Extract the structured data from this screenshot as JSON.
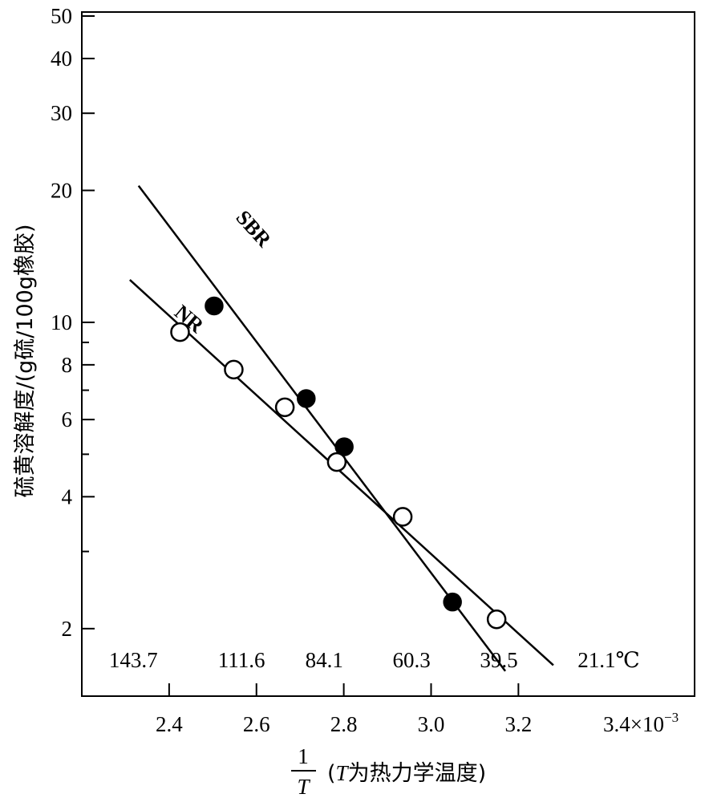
{
  "chart_data": {
    "type": "scatter",
    "title": "",
    "ylabel": "硫黄溶解度/(g硫/100g橡胶)",
    "xlabel_numerator": "1",
    "xlabel_denominator": "T",
    "xlabel_note_var": "T",
    "xlabel_note": "为热力学温度",
    "x_multiplier_label": "3.4×10",
    "x_multiplier_exp": "−3",
    "xlim": [
      2.2,
      3.4
    ],
    "ylim": [
      1.3,
      50
    ],
    "y_scale": "log",
    "x_ticks": [
      {
        "value": 2.4,
        "label": "2.4"
      },
      {
        "value": 2.6,
        "label": "2.6"
      },
      {
        "value": 2.8,
        "label": "2.8"
      },
      {
        "value": 3.0,
        "label": "3.0"
      },
      {
        "value": 3.2,
        "label": "3.2"
      }
    ],
    "y_ticks": [
      {
        "value": 2,
        "label": "2"
      },
      {
        "value": 4,
        "label": "4"
      },
      {
        "value": 6,
        "label": "6"
      },
      {
        "value": 8,
        "label": "8"
      },
      {
        "value": 10,
        "label": "10"
      },
      {
        "value": 20,
        "label": "20"
      },
      {
        "value": 30,
        "label": "30"
      },
      {
        "value": 40,
        "label": "40"
      },
      {
        "value": 50,
        "label": "50"
      }
    ],
    "y_minor_ticks": [
      3,
      5,
      7,
      9
    ],
    "temperature_labels": [
      {
        "x": 2.4,
        "label": "143.7"
      },
      {
        "x": 2.6,
        "label": "111.6"
      },
      {
        "x": 2.8,
        "label": "84.1"
      },
      {
        "x": 3.0,
        "label": "60.3"
      },
      {
        "x": 3.2,
        "label": "39.5"
      },
      {
        "x": 3.4,
        "label": "21.1℃"
      }
    ],
    "series": [
      {
        "name": "SBR",
        "marker": "filled-circle",
        "points": [
          {
            "x": 2.503,
            "y": 10.9
          },
          {
            "x": 2.714,
            "y": 6.7
          },
          {
            "x": 2.801,
            "y": 5.2
          },
          {
            "x": 3.049,
            "y": 2.3
          }
        ],
        "fit_line": [
          {
            "x": 2.33,
            "y": 20.5
          },
          {
            "x": 3.17,
            "y": 1.6
          }
        ]
      },
      {
        "name": "NR",
        "marker": "open-circle",
        "points": [
          {
            "x": 2.425,
            "y": 9.5
          },
          {
            "x": 2.548,
            "y": 7.8
          },
          {
            "x": 2.665,
            "y": 6.4
          },
          {
            "x": 2.784,
            "y": 4.8
          },
          {
            "x": 2.935,
            "y": 3.6
          },
          {
            "x": 3.15,
            "y": 2.1
          }
        ],
        "fit_line": [
          {
            "x": 2.31,
            "y": 12.5
          },
          {
            "x": 3.28,
            "y": 1.65
          }
        ]
      }
    ],
    "grid": false,
    "legend": "none"
  }
}
